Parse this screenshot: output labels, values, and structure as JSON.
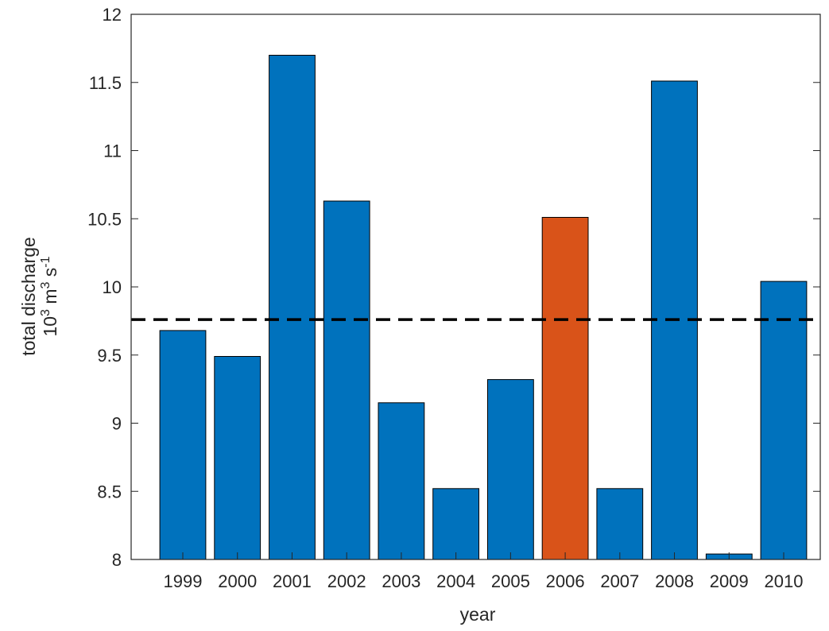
{
  "chart_data": {
    "type": "bar",
    "title": "",
    "xlabel": "year",
    "ylabel_line1": "total discharge",
    "ylabel_line2": {
      "base1": "10",
      "exp1": "3",
      "unit1": "m",
      "exp2": "3",
      "unit2": "s",
      "exp3": "-1"
    },
    "categories": [
      "1999",
      "2000",
      "2001",
      "2002",
      "2003",
      "2004",
      "2005",
      "2006",
      "2007",
      "2008",
      "2009",
      "2010"
    ],
    "series": [
      {
        "values": [
          9.68,
          9.49,
          11.7,
          10.63,
          9.15,
          8.52,
          9.32,
          10.51,
          8.52,
          11.51,
          8.04,
          10.04
        ]
      }
    ],
    "highlight_category": "2006",
    "reference_line": {
      "value": 9.76,
      "style": "dashed",
      "color": "#000000"
    },
    "ylim": [
      8,
      12
    ],
    "yticks": [
      8,
      8.5,
      9,
      9.5,
      10,
      10.5,
      11,
      11.5,
      12
    ],
    "ytick_labels": [
      "8",
      "8.5",
      "9",
      "9.5",
      "10",
      "10.5",
      "11",
      "11.5",
      "12"
    ],
    "grid": false,
    "colors": {
      "bar": "#0072BD",
      "highlight": "#D95319",
      "axis": "#262626"
    }
  }
}
